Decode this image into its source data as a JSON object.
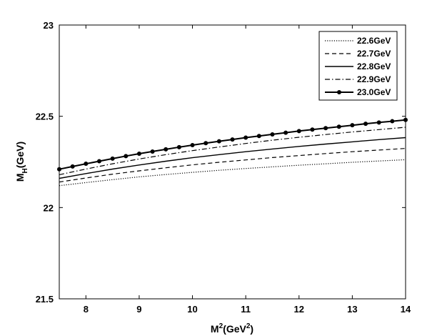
{
  "chart_data": {
    "type": "line",
    "xlabel": {
      "base": "M",
      "sup1": "2",
      "mid": "(GeV",
      "sup2": "2",
      "end": ")"
    },
    "ylabel": {
      "base": "M",
      "sub": "H",
      "end": "(GeV)"
    },
    "xlim": [
      7.5,
      14
    ],
    "ylim": [
      21.5,
      23
    ],
    "xticks": [
      8,
      9,
      10,
      11,
      12,
      13,
      14
    ],
    "yticks": [
      21.5,
      22,
      22.5,
      23
    ],
    "grid": false,
    "legend_position": "top-right",
    "series": [
      {
        "name": "22.6GeV",
        "style": "dotted",
        "x": [
          7.5,
          8,
          8.5,
          9,
          9.5,
          10,
          10.5,
          11,
          11.5,
          12,
          12.5,
          13,
          13.5,
          14
        ],
        "y": [
          22.12,
          22.137,
          22.153,
          22.168,
          22.181,
          22.193,
          22.204,
          22.214,
          22.223,
          22.232,
          22.24,
          22.248,
          22.255,
          22.262
        ]
      },
      {
        "name": "22.7GeV",
        "style": "dashed",
        "x": [
          7.5,
          8,
          8.5,
          9,
          9.5,
          10,
          10.5,
          11,
          11.5,
          12,
          12.5,
          13,
          13.5,
          14
        ],
        "y": [
          22.14,
          22.162,
          22.183,
          22.201,
          22.218,
          22.234,
          22.248,
          22.261,
          22.274,
          22.285,
          22.296,
          22.306,
          22.315,
          22.324
        ]
      },
      {
        "name": "22.8GeV",
        "style": "solid",
        "x": [
          7.5,
          8,
          8.5,
          9,
          9.5,
          10,
          10.5,
          11,
          11.5,
          12,
          12.5,
          13,
          13.5,
          14
        ],
        "y": [
          22.16,
          22.186,
          22.211,
          22.233,
          22.254,
          22.273,
          22.29,
          22.306,
          22.321,
          22.335,
          22.348,
          22.36,
          22.372,
          22.383
        ]
      },
      {
        "name": "22.9GeV",
        "style": "dashdot",
        "x": [
          7.5,
          8,
          8.5,
          9,
          9.5,
          10,
          10.5,
          11,
          11.5,
          12,
          12.5,
          13,
          13.5,
          14
        ],
        "y": [
          22.18,
          22.211,
          22.24,
          22.266,
          22.29,
          22.312,
          22.332,
          22.351,
          22.369,
          22.385,
          22.4,
          22.414,
          22.427,
          22.44
        ]
      },
      {
        "name": "23.0GeV",
        "style": "solid-marker",
        "x": [
          7.5,
          7.75,
          8,
          8.25,
          8.5,
          8.75,
          9,
          9.25,
          9.5,
          9.75,
          10,
          10.25,
          10.5,
          10.75,
          11,
          11.25,
          11.5,
          11.75,
          12,
          12.25,
          12.5,
          12.75,
          13,
          13.25,
          13.5,
          13.75,
          14
        ],
        "y": [
          22.21,
          22.225,
          22.24,
          22.254,
          22.268,
          22.282,
          22.295,
          22.307,
          22.319,
          22.331,
          22.342,
          22.353,
          22.363,
          22.373,
          22.383,
          22.392,
          22.401,
          22.41,
          22.419,
          22.427,
          22.435,
          22.443,
          22.451,
          22.459,
          22.466,
          22.473,
          22.48
        ]
      }
    ]
  }
}
